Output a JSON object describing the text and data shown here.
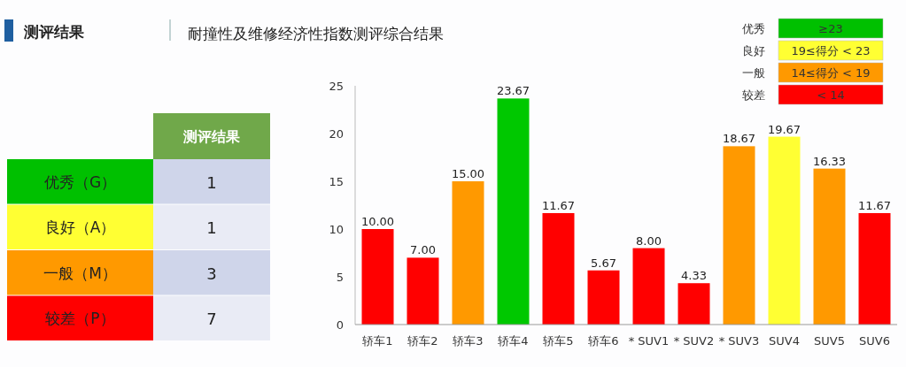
{
  "chart_data": [
    {
      "type": "other",
      "title": "测评结果",
      "xlabel": "测评结果",
      "categories": [
        "优秀（G）",
        "良好（A）",
        "一般（M）",
        "较差（P）"
      ],
      "values": [
        1,
        1,
        3,
        7
      ],
      "data_labels": true
    },
    {
      "type": "bar",
      "title": "耐撞性及维修经济性指数测评综合结果",
      "categories": [
        "轿车1",
        "轿车2",
        "轿车3",
        "轿车4",
        "轿车5",
        "轿车6",
        "* SUV1",
        "* SUV2",
        "* SUV3",
        "SUV4",
        "SUV5",
        "SUV6"
      ],
      "values": [
        10,
        7,
        15,
        23.67,
        11.67,
        5.67,
        8,
        4.33,
        18.67,
        19.67,
        16.33,
        11.67
      ],
      "value_labels": [
        "10.00",
        "7.00",
        "15.00",
        "23.67",
        "11.67",
        "5.67",
        "8.00",
        "4.33",
        "18.67",
        "19.67",
        "16.33",
        "11.67"
      ],
      "colors": [
        "#ff0000",
        "#ff0000",
        "#ff9900",
        "#00c800",
        "#ff0000",
        "#ff0000",
        "#ff0000",
        "#ff0000",
        "#ff9900",
        "#ffff33",
        "#ff9900",
        "#ff0000"
      ],
      "ylim": [
        0,
        25
      ],
      "yticks": [
        0,
        5,
        10,
        15,
        20,
        25
      ]
    },
    {
      "type": "other",
      "categories": [
        "优秀",
        "良好",
        "一般",
        "较差"
      ],
      "annotations": [
        "≥23",
        "19≤得分 < 23",
        "14≤得分 < 19",
        "< 14"
      ],
      "colors": [
        "#00c000",
        "#ffff33",
        "#ff9900",
        "#ff0000"
      ]
    }
  ]
}
